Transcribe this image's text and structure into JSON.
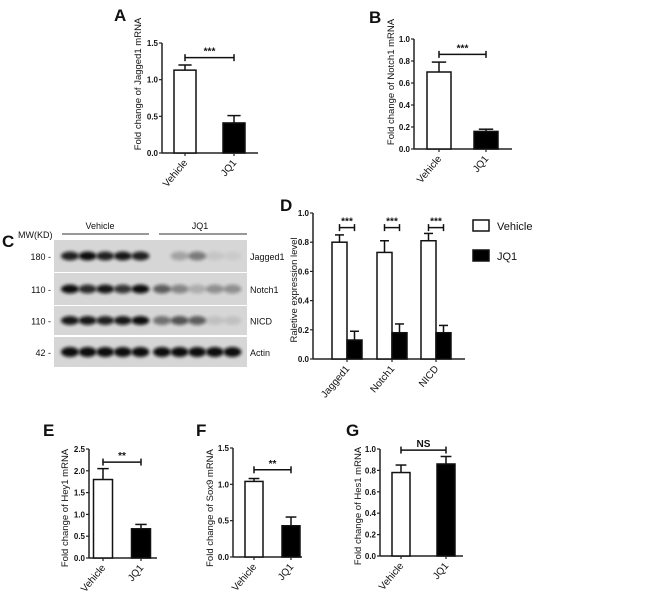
{
  "chart_data": [
    {
      "panel": "A",
      "type": "bar",
      "ylabel": "Fold change of Jagged1 mRNA",
      "categories": [
        "Vehicle",
        "JQ1"
      ],
      "values": [
        1.13,
        0.41
      ],
      "errors": [
        0.07,
        0.1
      ],
      "colors": [
        "#ffffff",
        "#000000"
      ],
      "ylim": [
        0,
        1.5
      ],
      "ticks": [
        "0.0",
        "0.5",
        "1.0",
        "1.5"
      ],
      "tick_values": [
        0,
        0.5,
        1.0,
        1.5
      ],
      "significance": [
        {
          "pair": [
            0,
            1
          ],
          "label": "***",
          "level": 1.3
        }
      ]
    },
    {
      "panel": "B",
      "type": "bar",
      "ylabel": "Fold change of Notch1 mRNA",
      "categories": [
        "Vehicle",
        "JQ1"
      ],
      "values": [
        0.7,
        0.16
      ],
      "errors": [
        0.09,
        0.02
      ],
      "colors": [
        "#ffffff",
        "#000000"
      ],
      "ylim": [
        0,
        1.0
      ],
      "ticks": [
        "0.0",
        "0.2",
        "0.4",
        "0.6",
        "0.8",
        "1.0"
      ],
      "tick_values": [
        0,
        0.2,
        0.4,
        0.6,
        0.8,
        1.0
      ],
      "significance": [
        {
          "pair": [
            0,
            1
          ],
          "label": "***",
          "level": 0.86
        }
      ]
    },
    {
      "panel": "D",
      "type": "bar",
      "ylabel": "Raletive expression level",
      "categories": [
        "Jagged1",
        "Notch1",
        "NICD"
      ],
      "series": [
        {
          "name": "Vehicle",
          "values": [
            0.8,
            0.73,
            0.81
          ],
          "errors": [
            0.05,
            0.08,
            0.05
          ],
          "color": "#ffffff"
        },
        {
          "name": "JQ1",
          "values": [
            0.13,
            0.18,
            0.18
          ],
          "errors": [
            0.06,
            0.06,
            0.05
          ],
          "color": "#000000"
        }
      ],
      "ylim": [
        0,
        1.0
      ],
      "ticks": [
        "0.0",
        "0.2",
        "0.4",
        "0.6",
        "0.8",
        "1.0"
      ],
      "tick_values": [
        0,
        0.2,
        0.4,
        0.6,
        0.8,
        1.0
      ],
      "significance": [
        {
          "group": 0,
          "label": "***",
          "level": 0.9
        },
        {
          "group": 1,
          "label": "***",
          "level": 0.9
        },
        {
          "group": 2,
          "label": "***",
          "level": 0.9
        }
      ],
      "legend": "right"
    },
    {
      "panel": "E",
      "type": "bar",
      "ylabel": "Fold change of Hey1 mRNA",
      "categories": [
        "Vehicle",
        "JQ1"
      ],
      "values": [
        1.8,
        0.67
      ],
      "errors": [
        0.25,
        0.1
      ],
      "colors": [
        "#ffffff",
        "#000000"
      ],
      "ylim": [
        0,
        2.5
      ],
      "ticks": [
        "0.0",
        "0.5",
        "1.0",
        "1.5",
        "2.0",
        "2.5"
      ],
      "tick_values": [
        0,
        0.5,
        1.0,
        1.5,
        2.0,
        2.5
      ],
      "significance": [
        {
          "pair": [
            0,
            1
          ],
          "label": "**",
          "level": 2.2
        }
      ]
    },
    {
      "panel": "F",
      "type": "bar",
      "ylabel": "Fold change of Sox9 mRNA",
      "categories": [
        "Vehicle",
        "JQ1"
      ],
      "values": [
        1.04,
        0.43
      ],
      "errors": [
        0.04,
        0.12
      ],
      "colors": [
        "#ffffff",
        "#000000"
      ],
      "ylim": [
        0,
        1.5
      ],
      "ticks": [
        "0.0",
        "0.5",
        "1.0",
        "1.5"
      ],
      "tick_values": [
        0,
        0.5,
        1.0,
        1.5
      ],
      "significance": [
        {
          "pair": [
            0,
            1
          ],
          "label": "**",
          "level": 1.2
        }
      ]
    },
    {
      "panel": "G",
      "type": "bar",
      "ylabel": "Fold change of Hes1 mRNA",
      "categories": [
        "Vehicle",
        "JQ1"
      ],
      "values": [
        0.78,
        0.86
      ],
      "errors": [
        0.07,
        0.07
      ],
      "colors": [
        "#ffffff",
        "#000000"
      ],
      "ylim": [
        0,
        1.0
      ],
      "ticks": [
        "0.0",
        "0.2",
        "0.4",
        "0.6",
        "0.8",
        "1.0"
      ],
      "tick_values": [
        0,
        0.2,
        0.4,
        0.6,
        0.8,
        1.0
      ],
      "significance": [
        {
          "pair": [
            0,
            1
          ],
          "label": "NS",
          "level": 0.99
        }
      ]
    }
  ],
  "blot": {
    "panel": "C",
    "mw_header": "MW(KD)",
    "groups": [
      "Vehicle",
      "JQ1"
    ],
    "rows": [
      {
        "protein": "Jagged1",
        "mw": "180 -",
        "intensity": [
          0.9,
          1.0,
          0.9,
          0.95,
          0.9,
          0,
          0.25,
          0.45,
          0.08,
          0.05
        ]
      },
      {
        "protein": "Notch1",
        "mw": "110 -",
        "intensity": [
          1.0,
          0.85,
          0.95,
          0.8,
          1.0,
          0.6,
          0.4,
          0.2,
          0.35,
          0.35
        ]
      },
      {
        "protein": "NICD",
        "mw": "110 -",
        "intensity": [
          0.95,
          0.95,
          0.9,
          0.95,
          1.0,
          0.5,
          0.65,
          0.6,
          0.1,
          0.1
        ]
      },
      {
        "protein": "Actin",
        "mw": "42 -",
        "intensity": [
          1,
          1,
          1,
          1,
          1,
          1,
          1,
          1,
          1,
          1
        ]
      }
    ]
  }
}
